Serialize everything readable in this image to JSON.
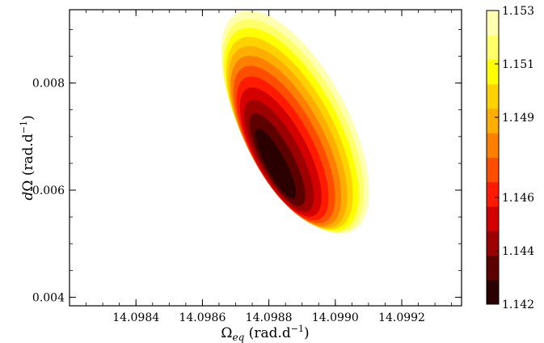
{
  "chart_data": {
    "type": "heatmap",
    "subtype": "filled-contour",
    "title": "",
    "xlabel": "Ω_eq (rad.d⁻¹)",
    "ylabel": "dΩ (rad.d⁻¹)",
    "xlim": [
      14.0982,
      14.09938
    ],
    "ylim": [
      0.00384,
      0.00937
    ],
    "x_ticks": [
      {
        "value": 14.0984,
        "label": "14.0984"
      },
      {
        "value": 14.0986,
        "label": "14.0986"
      },
      {
        "value": 14.0988,
        "label": "14.0988"
      },
      {
        "value": 14.099,
        "label": "14.0990"
      },
      {
        "value": 14.0992,
        "label": "14.0992"
      }
    ],
    "y_ticks": [
      {
        "value": 0.004,
        "label": "0.004"
      },
      {
        "value": 0.006,
        "label": "0.006"
      },
      {
        "value": 0.008,
        "label": "0.008"
      }
    ],
    "minimum": {
      "x": 14.09882,
      "y": 0.0065,
      "value": 1.142
    },
    "center_shift_per_level": {
      "x": 5.3e-06,
      "y": 7.05e-05
    },
    "contour_levels": [
      {
        "value": 1.142,
        "x_half": 2.95e-05,
        "y_half": 0.00073,
        "color": "#2a0000"
      },
      {
        "value": 1.143,
        "x_half": 4.7e-05,
        "y_half": 0.00097,
        "color": "#5c0000"
      },
      {
        "value": 1.144,
        "x_half": 6.4e-05,
        "y_half": 0.00117,
        "color": "#9c0000"
      },
      {
        "value": 1.145,
        "x_half": 7.9e-05,
        "y_half": 0.00134,
        "color": "#d40000"
      },
      {
        "value": 1.146,
        "x_half": 9.1e-05,
        "y_half": 0.00149,
        "color": "#ff1a00"
      },
      {
        "value": 1.147,
        "x_half": 0.0001025,
        "y_half": 0.00163,
        "color": "#ff4d00"
      },
      {
        "value": 1.148,
        "x_half": 0.000113,
        "y_half": 0.00176,
        "color": "#ff7f00"
      },
      {
        "value": 1.149,
        "x_half": 0.000123,
        "y_half": 0.00188,
        "color": "#ffad00"
      },
      {
        "value": 1.15,
        "x_half": 0.0001325,
        "y_half": 0.00199,
        "color": "#ffd200"
      },
      {
        "value": 1.151,
        "x_half": 0.0001415,
        "y_half": 0.0021,
        "color": "#ffff00"
      },
      {
        "value": 1.152,
        "x_half": 0.00015,
        "y_half": 0.0022,
        "color": "#ffff6a"
      },
      {
        "value": 1.153,
        "x_half": 0.000158,
        "y_half": 0.0023,
        "color": "#ffffb0"
      }
    ],
    "colorbar": {
      "min": 1.142,
      "max": 1.153,
      "colors": [
        "#2a0000",
        "#5c0000",
        "#9c0000",
        "#d40000",
        "#ff1a00",
        "#ff4d00",
        "#ff7f00",
        "#ffad00",
        "#ffd200",
        "#ffff00",
        "#ffff6a",
        "#ffffb0"
      ],
      "ticks": [
        {
          "value": 1.142,
          "label": "1.142"
        },
        {
          "value": 1.144,
          "label": "1.144"
        },
        {
          "value": 1.146,
          "label": "1.146"
        },
        {
          "value": 1.149,
          "label": "1.149"
        },
        {
          "value": 1.151,
          "label": "1.151"
        },
        {
          "value": 1.153,
          "label": "1.153"
        }
      ]
    },
    "grid": false,
    "legend": "none"
  }
}
